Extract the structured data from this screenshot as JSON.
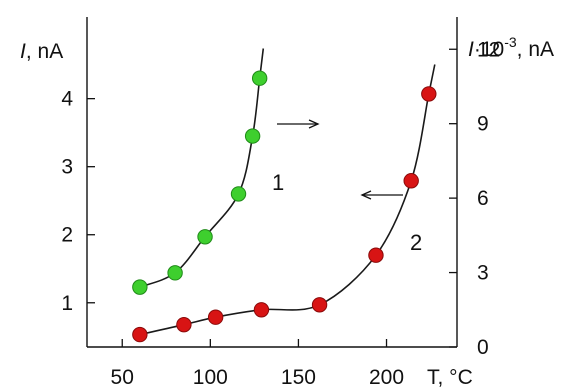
{
  "chart_data": {
    "type": "scatter",
    "x_axis": {
      "label": "T, °C",
      "ticks": [
        50,
        100,
        150,
        200
      ],
      "range": [
        30,
        240
      ]
    },
    "y_left_axis": {
      "label_italic": "I",
      "label_rest": ", nA",
      "ticks": [
        1,
        2,
        3,
        4
      ],
      "range": [
        0.35,
        5.2
      ]
    },
    "y_right_axis": {
      "label_italic": "I",
      "label_mid": "·10",
      "label_sup": "-3",
      "label_rest": ", nA",
      "ticks": [
        0,
        3,
        6,
        9,
        12
      ],
      "range": [
        0,
        13.3
      ]
    },
    "series": [
      {
        "label": "1",
        "axis": "left",
        "color": "#3ecf2e",
        "stroke": "#1f8a18",
        "x": [
          60,
          80,
          97,
          116,
          124,
          128
        ],
        "y": [
          1.23,
          1.44,
          1.97,
          2.6,
          3.45,
          4.3
        ]
      },
      {
        "label": "2",
        "axis": "right",
        "color": "#d81414",
        "stroke": "#8a0a0a",
        "x": [
          60,
          85,
          103,
          129,
          162,
          194,
          214,
          224
        ],
        "y": [
          0.5,
          0.9,
          1.2,
          1.5,
          1.7,
          3.7,
          6.7,
          10.2
        ]
      }
    ],
    "arrows": [
      {
        "series": "1",
        "direction": "right"
      },
      {
        "series": "2",
        "direction": "left"
      }
    ]
  }
}
